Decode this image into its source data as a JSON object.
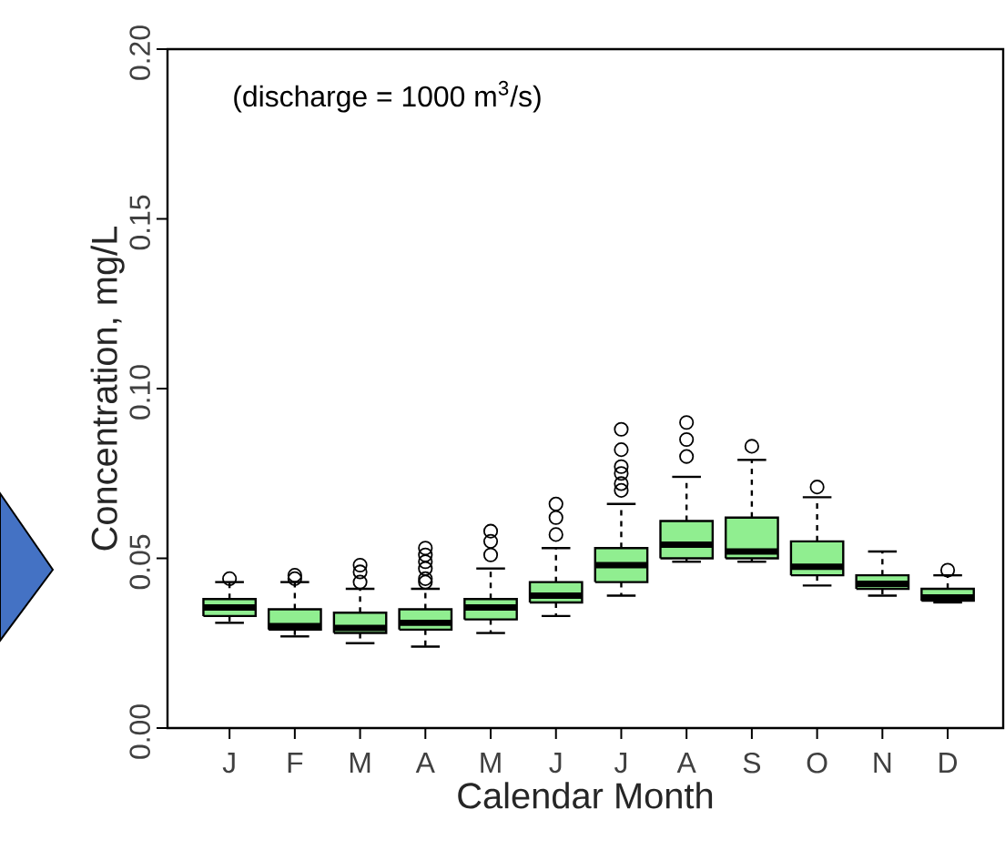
{
  "chart_data": {
    "type": "box",
    "xlabel": "Calendar Month",
    "ylabel": "Concentration, mg/L",
    "annotations": [
      "(discharge = 1000 m$^{3}$/s)"
    ],
    "categories": [
      "J",
      "F",
      "M",
      "A",
      "M",
      "J",
      "J",
      "A",
      "S",
      "O",
      "N",
      "D"
    ],
    "color": "#90ee90",
    "marker": "circle",
    "ylim": [
      0,
      0.2
    ],
    "yticks": [
      {
        "value": 0,
        "label": "0.00"
      },
      {
        "value": 0.05,
        "label": "0.05"
      },
      {
        "value": 0.1,
        "label": "0.10"
      },
      {
        "value": 0.15,
        "label": "0.15"
      },
      {
        "value": 0.2,
        "label": "0.20"
      }
    ],
    "boxes": [
      {
        "low": 0.031,
        "q1": 0.033,
        "median": 0.0355,
        "q3": 0.038,
        "high": 0.043,
        "outliers": [
          0.044
        ]
      },
      {
        "low": 0.027,
        "q1": 0.029,
        "median": 0.03,
        "q3": 0.035,
        "high": 0.043,
        "outliers": [
          0.044,
          0.045
        ]
      },
      {
        "low": 0.025,
        "q1": 0.028,
        "median": 0.0295,
        "q3": 0.034,
        "high": 0.041,
        "outliers": [
          0.043,
          0.046,
          0.048
        ]
      },
      {
        "low": 0.024,
        "q1": 0.029,
        "median": 0.031,
        "q3": 0.035,
        "high": 0.041,
        "outliers": [
          0.043,
          0.044,
          0.047,
          0.049,
          0.051,
          0.053
        ]
      },
      {
        "low": 0.028,
        "q1": 0.032,
        "median": 0.0355,
        "q3": 0.038,
        "high": 0.047,
        "outliers": [
          0.051,
          0.055,
          0.058
        ]
      },
      {
        "low": 0.033,
        "q1": 0.037,
        "median": 0.039,
        "q3": 0.043,
        "high": 0.053,
        "outliers": [
          0.057,
          0.062,
          0.066
        ]
      },
      {
        "low": 0.039,
        "q1": 0.043,
        "median": 0.048,
        "q3": 0.053,
        "high": 0.066,
        "outliers": [
          0.07,
          0.072,
          0.075,
          0.077,
          0.082,
          0.088
        ]
      },
      {
        "low": 0.049,
        "q1": 0.05,
        "median": 0.054,
        "q3": 0.061,
        "high": 0.074,
        "outliers": [
          0.08,
          0.085,
          0.09
        ]
      },
      {
        "low": 0.049,
        "q1": 0.05,
        "median": 0.052,
        "q3": 0.062,
        "high": 0.079,
        "outliers": [
          0.083
        ]
      },
      {
        "low": 0.042,
        "q1": 0.045,
        "median": 0.0475,
        "q3": 0.055,
        "high": 0.068,
        "outliers": [
          0.071
        ]
      },
      {
        "low": 0.039,
        "q1": 0.041,
        "median": 0.0425,
        "q3": 0.045,
        "high": 0.052
      },
      {
        "low": 0.037,
        "q1": 0.0375,
        "median": 0.0385,
        "q3": 0.041,
        "high": 0.045,
        "outliers": [
          0.0465
        ]
      }
    ]
  }
}
